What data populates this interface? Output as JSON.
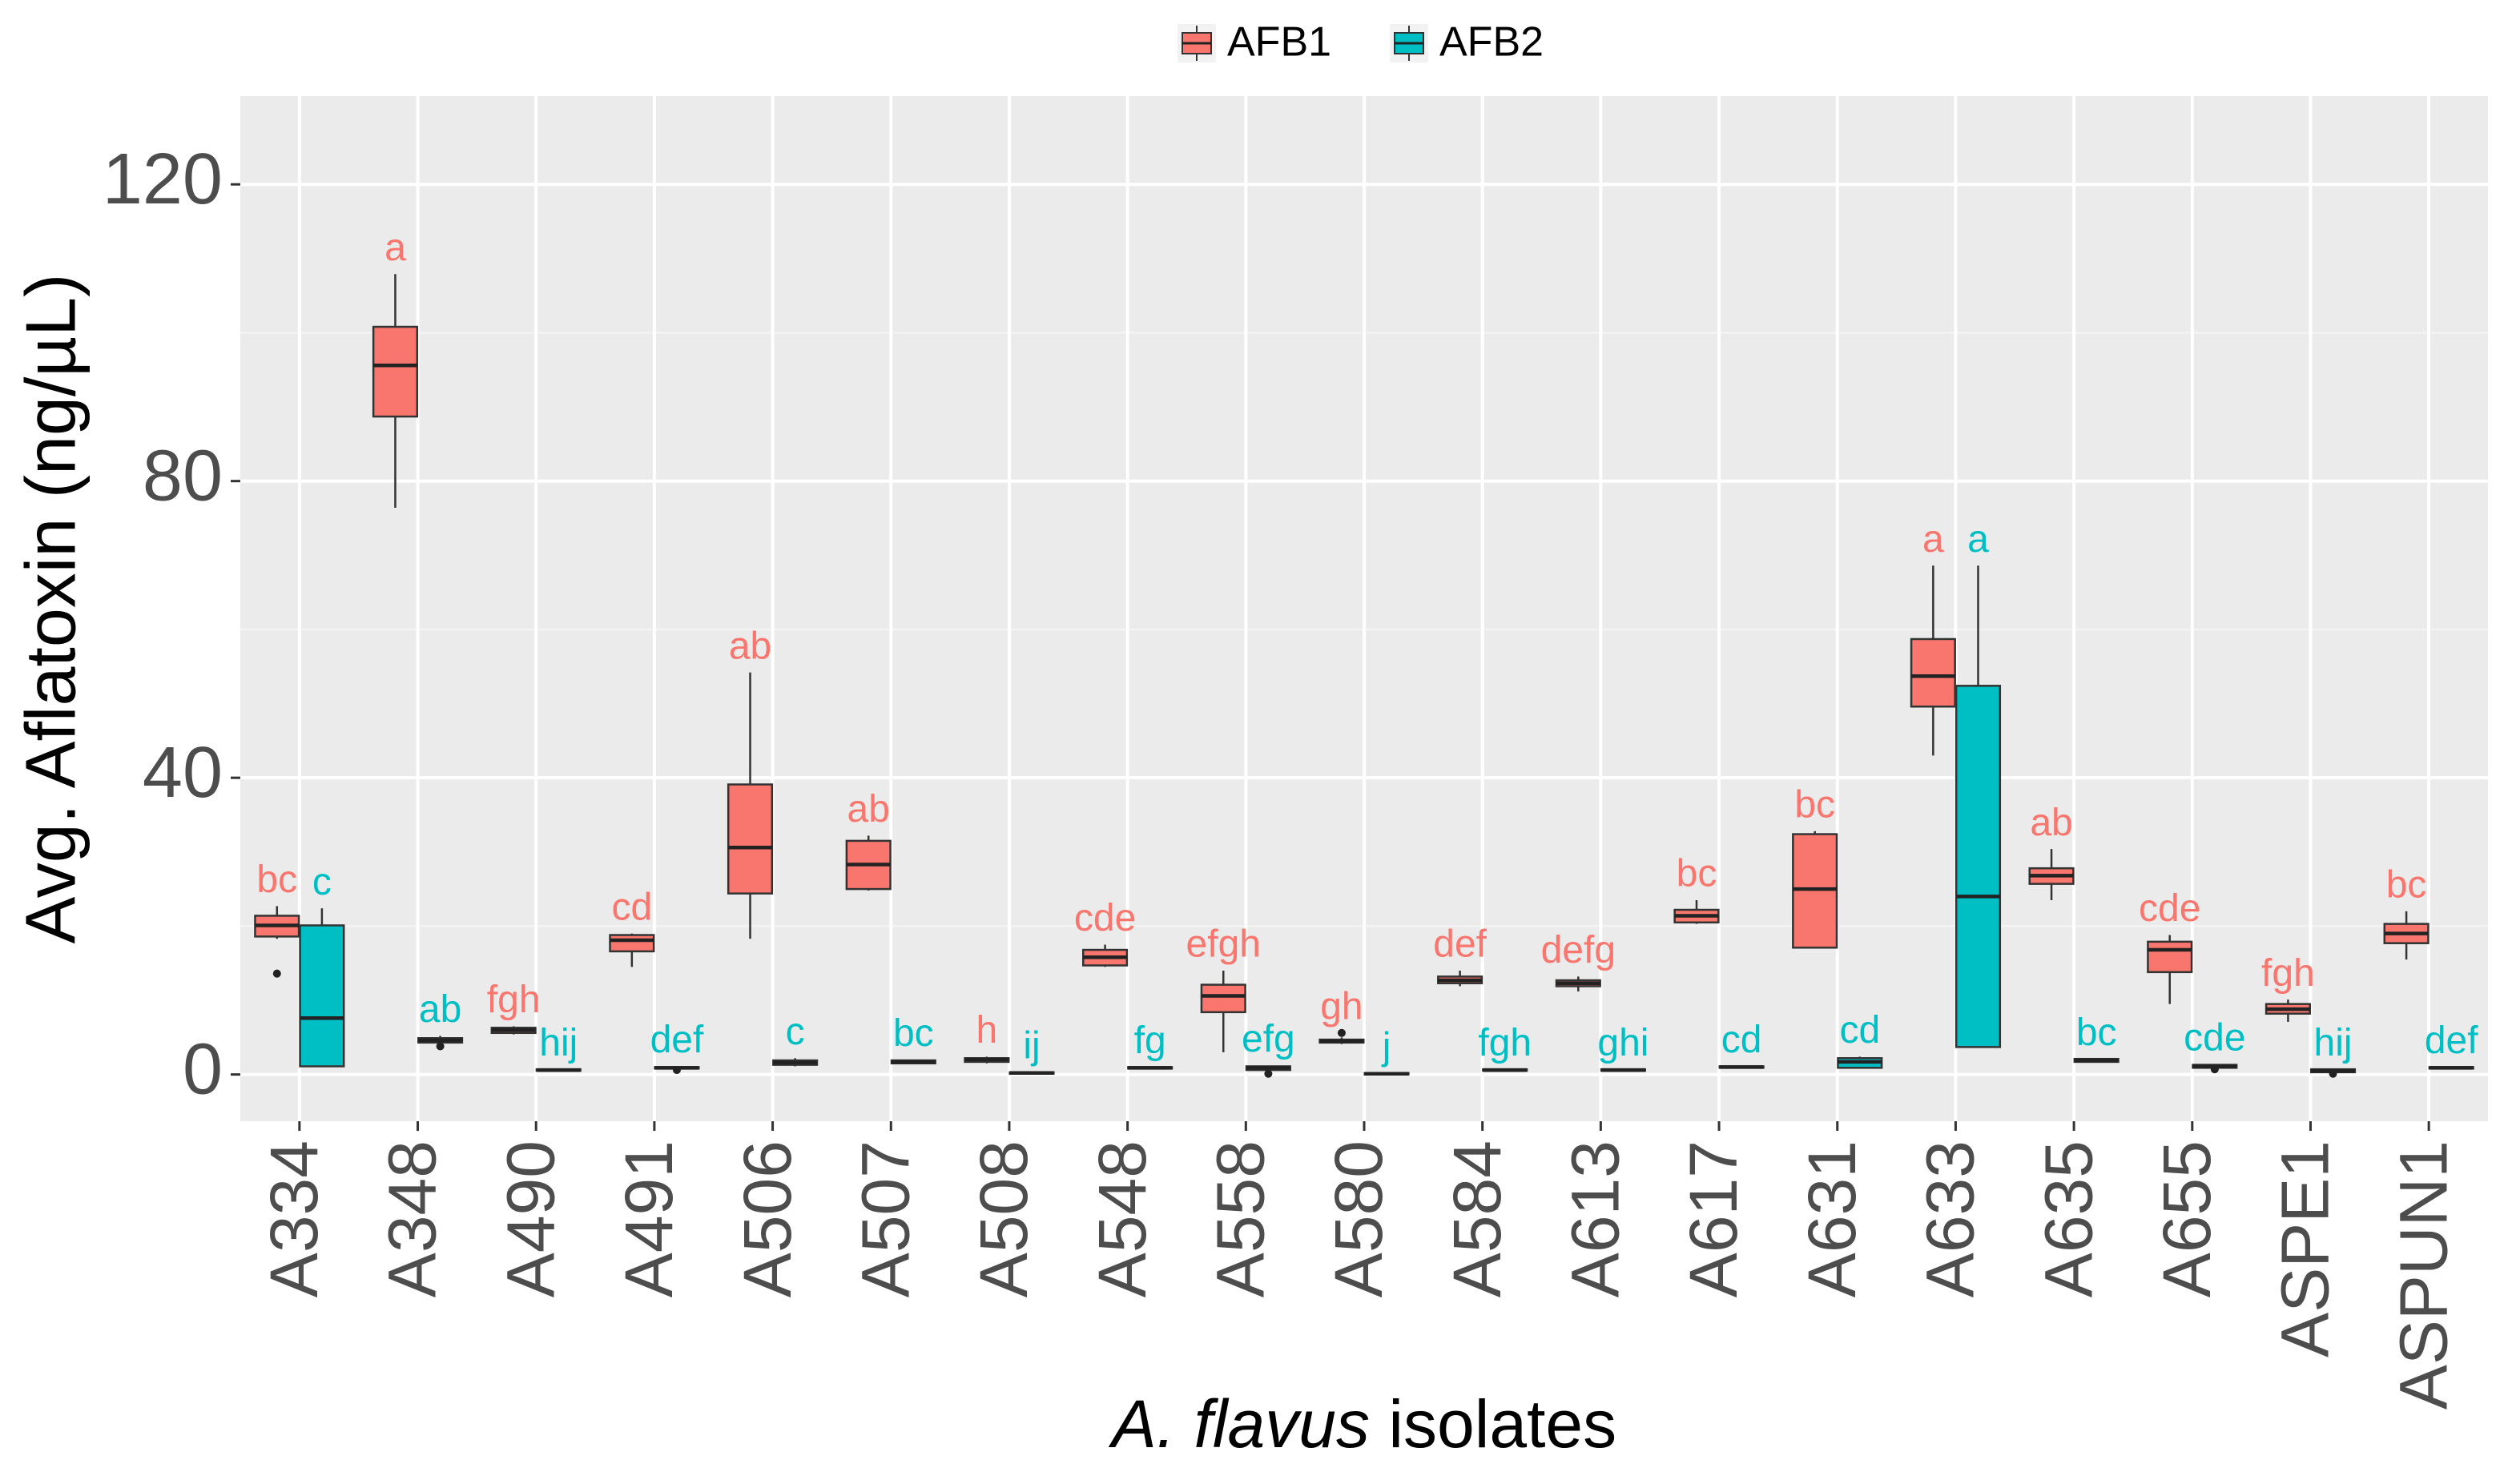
{
  "chart_data": {
    "type": "boxplot",
    "ylabel": "Avg. Aflatoxin (ng/µL)",
    "xlabel": {
      "italic": "A. flavus",
      "text": "isolates"
    },
    "categories": [
      "A334",
      "A348",
      "A490",
      "A491",
      "A506",
      "A507",
      "A508",
      "A548",
      "A558",
      "A580",
      "A584",
      "A613",
      "A617",
      "A631",
      "A633",
      "A635",
      "A655",
      "ASPE1",
      "ASPUN1"
    ],
    "ylim": [
      -6.3,
      131.9
    ],
    "yticks": [
      0,
      40,
      80,
      120
    ],
    "yminor": [
      20,
      60,
      100
    ],
    "grid": true,
    "legend": "top",
    "series": [
      {
        "name": "AFB1",
        "color": "#F8766D",
        "boxes": [
          {
            "min": 18.3,
            "q1": 18.6,
            "median": 20.1,
            "q3": 21.4,
            "max": 22.7,
            "outliers": [
              13.6
            ]
          },
          {
            "min": 76.4,
            "q1": 88.7,
            "median": 95.6,
            "q3": 100.8,
            "max": 107.9,
            "outliers": []
          },
          {
            "min": 5.4,
            "q1": 5.6,
            "median": 6.0,
            "q3": 6.3,
            "max": 6.5,
            "outliers": []
          },
          {
            "min": 14.5,
            "q1": 16.6,
            "median": 18.1,
            "q3": 18.8,
            "max": 19.0,
            "outliers": []
          },
          {
            "min": 18.3,
            "q1": 24.4,
            "median": 30.6,
            "q3": 39.1,
            "max": 54.2,
            "outliers": []
          },
          {
            "min": 24.8,
            "q1": 25.0,
            "median": 28.3,
            "q3": 31.5,
            "max": 32.2,
            "outliers": []
          },
          {
            "min": 1.5,
            "q1": 1.7,
            "median": 2.0,
            "q3": 2.2,
            "max": 2.4,
            "outliers": []
          },
          {
            "min": 14.5,
            "q1": 14.7,
            "median": 15.8,
            "q3": 16.8,
            "max": 17.5,
            "outliers": []
          },
          {
            "min": 3.0,
            "q1": 8.4,
            "median": 10.6,
            "q3": 12.1,
            "max": 14.0,
            "outliers": []
          },
          {
            "min": 4.1,
            "q1": 4.3,
            "median": 4.5,
            "q3": 4.7,
            "max": 5.0,
            "outliers": [
              5.6
            ]
          },
          {
            "min": 11.9,
            "q1": 12.3,
            "median": 12.7,
            "q3": 13.2,
            "max": 14.0,
            "outliers": []
          },
          {
            "min": 11.2,
            "q1": 11.9,
            "median": 12.3,
            "q3": 12.7,
            "max": 13.2,
            "outliers": []
          },
          {
            "min": 20.3,
            "q1": 20.5,
            "median": 21.4,
            "q3": 22.2,
            "max": 23.5,
            "outliers": []
          },
          {
            "min": 17.1,
            "q1": 17.1,
            "median": 25.0,
            "q3": 32.4,
            "max": 32.8,
            "outliers": []
          },
          {
            "min": 43.0,
            "q1": 49.6,
            "median": 53.7,
            "q3": 58.7,
            "max": 68.6,
            "outliers": []
          },
          {
            "min": 23.5,
            "q1": 25.7,
            "median": 26.8,
            "q3": 27.8,
            "max": 30.4,
            "outliers": []
          },
          {
            "min": 9.5,
            "q1": 13.8,
            "median": 16.8,
            "q3": 17.9,
            "max": 18.8,
            "outliers": []
          },
          {
            "min": 7.1,
            "q1": 8.2,
            "median": 8.8,
            "q3": 9.5,
            "max": 10.1,
            "outliers": []
          },
          {
            "min": 15.5,
            "q1": 17.7,
            "median": 19.0,
            "q3": 20.3,
            "max": 22.0,
            "outliers": []
          }
        ],
        "letters": [
          "bc",
          "a",
          "fgh",
          "cd",
          "ab",
          "ab",
          "h",
          "cde",
          "efgh",
          "gh",
          "def",
          "defg",
          "bc",
          "bc",
          "a",
          "ab",
          "cde",
          "fgh",
          "bc"
        ]
      },
      {
        "name": "AFB2",
        "color": "#00BFC4",
        "boxes": [
          {
            "min": 1.1,
            "q1": 1.1,
            "median": 7.6,
            "q3": 20.1,
            "max": 22.4,
            "outliers": []
          },
          {
            "min": 4.1,
            "q1": 4.3,
            "median": 4.6,
            "q3": 4.9,
            "max": 5.2,
            "outliers": [
              3.8
            ]
          },
          {
            "min": 0.5,
            "q1": 0.5,
            "median": 0.6,
            "q3": 0.7,
            "max": 0.7,
            "outliers": []
          },
          {
            "min": 0.7,
            "q1": 0.8,
            "median": 0.9,
            "q3": 1.0,
            "max": 1.1,
            "outliers": [
              0.6
            ]
          },
          {
            "min": 1.1,
            "q1": 1.3,
            "median": 1.6,
            "q3": 1.9,
            "max": 2.2,
            "outliers": []
          },
          {
            "min": 1.4,
            "q1": 1.5,
            "median": 1.7,
            "q3": 1.9,
            "max": 2.0,
            "outliers": []
          },
          {
            "min": 0.1,
            "q1": 0.1,
            "median": 0.2,
            "q3": 0.3,
            "max": 0.3,
            "outliers": []
          },
          {
            "min": 0.8,
            "q1": 0.8,
            "median": 0.9,
            "q3": 1.0,
            "max": 1.0,
            "outliers": []
          },
          {
            "min": 0.5,
            "q1": 0.6,
            "median": 0.9,
            "q3": 1.1,
            "max": 1.2,
            "outliers": [
              0.1
            ]
          },
          {
            "min": 0.0,
            "q1": 0.0,
            "median": 0.1,
            "q3": 0.2,
            "max": 0.2,
            "outliers": []
          },
          {
            "min": 0.5,
            "q1": 0.5,
            "median": 0.6,
            "q3": 0.7,
            "max": 0.7,
            "outliers": []
          },
          {
            "min": 0.5,
            "q1": 0.5,
            "median": 0.6,
            "q3": 0.7,
            "max": 0.7,
            "outliers": []
          },
          {
            "min": 0.9,
            "q1": 0.9,
            "median": 1.0,
            "q3": 1.1,
            "max": 1.1,
            "outliers": []
          },
          {
            "min": 0.8,
            "q1": 0.9,
            "median": 1.7,
            "q3": 2.2,
            "max": 2.4,
            "outliers": []
          },
          {
            "min": 3.7,
            "q1": 3.7,
            "median": 24.0,
            "q3": 52.4,
            "max": 68.6,
            "outliers": []
          },
          {
            "min": 1.7,
            "q1": 1.7,
            "median": 1.9,
            "q3": 2.1,
            "max": 2.1,
            "outliers": []
          },
          {
            "min": 0.9,
            "q1": 0.9,
            "median": 1.1,
            "q3": 1.3,
            "max": 1.4,
            "outliers": [
              0.7
            ]
          },
          {
            "min": 0.3,
            "q1": 0.3,
            "median": 0.5,
            "q3": 0.7,
            "max": 0.7,
            "outliers": [
              0.1
            ]
          },
          {
            "min": 0.8,
            "q1": 0.8,
            "median": 0.9,
            "q3": 1.0,
            "max": 1.0,
            "outliers": []
          }
        ],
        "letters": [
          "c",
          "ab",
          "hij",
          "def",
          "c",
          "bc",
          "ij",
          "fg",
          "efg",
          "j",
          "fgh",
          "ghi",
          "cd",
          "cd",
          "a",
          "bc",
          "cde",
          "hij",
          "def"
        ]
      }
    ]
  }
}
